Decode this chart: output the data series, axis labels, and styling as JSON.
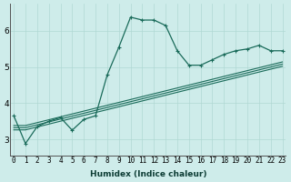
{
  "xlabel": "Humidex (Indice chaleur)",
  "bg_color": "#ceecea",
  "line_color": "#1a6b5a",
  "grid_color": "#b0d8d4",
  "x_ticks": [
    0,
    1,
    2,
    3,
    4,
    5,
    6,
    7,
    8,
    9,
    10,
    11,
    12,
    13,
    14,
    15,
    16,
    17,
    18,
    19,
    20,
    21,
    22,
    23
  ],
  "y_ticks": [
    3,
    4,
    5,
    6
  ],
  "xlim": [
    -0.3,
    23.3
  ],
  "ylim": [
    2.55,
    6.75
  ],
  "series1_y": [
    3.65,
    2.88,
    3.35,
    3.5,
    3.6,
    3.25,
    3.55,
    3.65,
    4.78,
    5.55,
    6.38,
    6.3,
    6.3,
    6.15,
    5.45,
    5.05,
    5.05,
    5.2,
    5.35,
    5.45,
    5.5,
    5.6,
    5.45,
    5.45
  ],
  "series2_y": [
    3.38,
    3.38,
    3.46,
    3.54,
    3.62,
    3.7,
    3.78,
    3.86,
    3.94,
    4.02,
    4.1,
    4.18,
    4.26,
    4.34,
    4.42,
    4.5,
    4.58,
    4.66,
    4.74,
    4.82,
    4.9,
    4.98,
    5.06,
    5.14
  ],
  "series3_y": [
    3.32,
    3.32,
    3.4,
    3.48,
    3.56,
    3.64,
    3.72,
    3.8,
    3.88,
    3.96,
    4.04,
    4.12,
    4.2,
    4.28,
    4.36,
    4.44,
    4.52,
    4.6,
    4.68,
    4.76,
    4.84,
    4.92,
    5.0,
    5.08
  ],
  "series4_y": [
    3.26,
    3.26,
    3.34,
    3.42,
    3.5,
    3.58,
    3.66,
    3.74,
    3.82,
    3.9,
    3.98,
    4.06,
    4.14,
    4.22,
    4.3,
    4.38,
    4.46,
    4.54,
    4.62,
    4.7,
    4.78,
    4.86,
    4.94,
    5.02
  ],
  "tick_fontsize": 5.5,
  "xlabel_fontsize": 6.5
}
